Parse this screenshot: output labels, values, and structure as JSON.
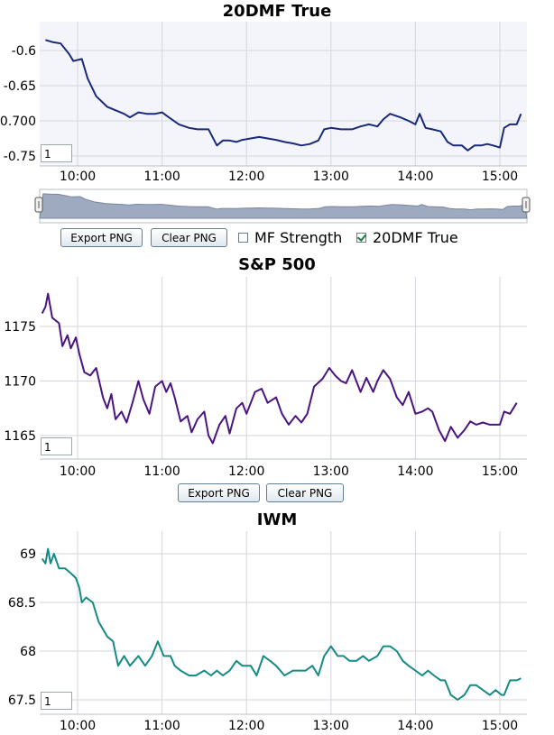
{
  "time_ticks": [
    "10:00",
    "11:00",
    "12:00",
    "13:00",
    "14:00",
    "15:00"
  ],
  "buttons": {
    "export_png": "Export PNG",
    "clear_png": "Clear PNG"
  },
  "toggles": {
    "mf_strength": "MF Strength",
    "dmf_true": "20DMF True"
  },
  "zoom_value": "1",
  "colors": {
    "dmf": "#1a2a7a",
    "spx": "#4b1580",
    "iwm": "#168a84",
    "navigator": "#9eaac0"
  },
  "chart_data": [
    {
      "type": "line",
      "title": "20DMF True",
      "series": [
        {
          "values": [
            [
              9.62,
              -0.585
            ],
            [
              9.7,
              -0.588
            ],
            [
              9.8,
              -0.59
            ],
            [
              9.9,
              -0.605
            ],
            [
              9.95,
              -0.615
            ],
            [
              10.05,
              -0.612
            ],
            [
              10.12,
              -0.64
            ],
            [
              10.22,
              -0.665
            ],
            [
              10.35,
              -0.68
            ],
            [
              10.45,
              -0.685
            ],
            [
              10.55,
              -0.69
            ],
            [
              10.62,
              -0.695
            ],
            [
              10.72,
              -0.688
            ],
            [
              10.82,
              -0.69
            ],
            [
              10.92,
              -0.69
            ],
            [
              11.0,
              -0.688
            ],
            [
              11.08,
              -0.695
            ],
            [
              11.2,
              -0.705
            ],
            [
              11.32,
              -0.71
            ],
            [
              11.42,
              -0.712
            ],
            [
              11.55,
              -0.712
            ],
            [
              11.65,
              -0.735
            ],
            [
              11.72,
              -0.728
            ],
            [
              11.8,
              -0.728
            ],
            [
              11.88,
              -0.73
            ],
            [
              11.95,
              -0.727
            ],
            [
              12.05,
              -0.725
            ],
            [
              12.15,
              -0.723
            ],
            [
              12.25,
              -0.725
            ],
            [
              12.35,
              -0.727
            ],
            [
              12.45,
              -0.73
            ],
            [
              12.55,
              -0.732
            ],
            [
              12.65,
              -0.735
            ],
            [
              12.75,
              -0.733
            ],
            [
              12.85,
              -0.728
            ],
            [
              12.92,
              -0.712
            ],
            [
              13.0,
              -0.71
            ],
            [
              13.12,
              -0.712
            ],
            [
              13.25,
              -0.712
            ],
            [
              13.35,
              -0.708
            ],
            [
              13.45,
              -0.705
            ],
            [
              13.55,
              -0.708
            ],
            [
              13.62,
              -0.698
            ],
            [
              13.7,
              -0.69
            ],
            [
              13.82,
              -0.695
            ],
            [
              13.92,
              -0.7
            ],
            [
              14.0,
              -0.705
            ],
            [
              14.05,
              -0.69
            ],
            [
              14.12,
              -0.71
            ],
            [
              14.2,
              -0.712
            ],
            [
              14.3,
              -0.715
            ],
            [
              14.38,
              -0.73
            ],
            [
              14.45,
              -0.735
            ],
            [
              14.55,
              -0.735
            ],
            [
              14.62,
              -0.742
            ],
            [
              14.7,
              -0.735
            ],
            [
              14.78,
              -0.735
            ],
            [
              14.85,
              -0.733
            ],
            [
              14.92,
              -0.735
            ],
            [
              15.0,
              -0.738
            ],
            [
              15.05,
              -0.71
            ],
            [
              15.12,
              -0.705
            ],
            [
              15.2,
              -0.705
            ],
            [
              15.25,
              -0.69
            ]
          ]
        }
      ],
      "yticks": [
        "-0.6",
        "-0.65",
        "-0.700",
        "-0.75"
      ],
      "ylim": [
        -0.763,
        -0.568
      ],
      "xlim": [
        9.58,
        15.28
      ]
    },
    {
      "type": "line",
      "title": "S&P 500",
      "series": [
        {
          "values": [
            [
              9.58,
              1176.2
            ],
            [
              9.62,
              1176.8
            ],
            [
              9.65,
              1178.0
            ],
            [
              9.7,
              1175.8
            ],
            [
              9.78,
              1175.3
            ],
            [
              9.82,
              1173.2
            ],
            [
              9.88,
              1174.2
            ],
            [
              9.92,
              1173.0
            ],
            [
              9.98,
              1174.0
            ],
            [
              10.02,
              1172.5
            ],
            [
              10.08,
              1170.8
            ],
            [
              10.15,
              1170.5
            ],
            [
              10.22,
              1171.2
            ],
            [
              10.3,
              1168.5
            ],
            [
              10.35,
              1167.5
            ],
            [
              10.4,
              1168.8
            ],
            [
              10.45,
              1166.5
            ],
            [
              10.52,
              1167.2
            ],
            [
              10.58,
              1166.2
            ],
            [
              10.65,
              1168.0
            ],
            [
              10.72,
              1170.0
            ],
            [
              10.78,
              1168.3
            ],
            [
              10.85,
              1167.0
            ],
            [
              10.92,
              1169.5
            ],
            [
              11.0,
              1170.0
            ],
            [
              11.05,
              1169.0
            ],
            [
              11.1,
              1169.8
            ],
            [
              11.15,
              1168.5
            ],
            [
              11.22,
              1166.3
            ],
            [
              11.3,
              1166.8
            ],
            [
              11.35,
              1165.3
            ],
            [
              11.42,
              1166.5
            ],
            [
              11.5,
              1167.2
            ],
            [
              11.55,
              1165.0
            ],
            [
              11.6,
              1164.3
            ],
            [
              11.68,
              1166.0
            ],
            [
              11.75,
              1166.8
            ],
            [
              11.8,
              1165.2
            ],
            [
              11.88,
              1167.5
            ],
            [
              11.95,
              1168.0
            ],
            [
              12.0,
              1167.0
            ],
            [
              12.1,
              1169.0
            ],
            [
              12.18,
              1169.3
            ],
            [
              12.25,
              1168.0
            ],
            [
              12.35,
              1168.5
            ],
            [
              12.42,
              1167.0
            ],
            [
              12.5,
              1166.0
            ],
            [
              12.58,
              1166.8
            ],
            [
              12.65,
              1166.2
            ],
            [
              12.72,
              1167.0
            ],
            [
              12.8,
              1169.5
            ],
            [
              12.9,
              1170.2
            ],
            [
              12.98,
              1171.2
            ],
            [
              13.05,
              1170.5
            ],
            [
              13.12,
              1170.0
            ],
            [
              13.18,
              1169.8
            ],
            [
              13.25,
              1171.0
            ],
            [
              13.35,
              1169.0
            ],
            [
              13.42,
              1170.3
            ],
            [
              13.5,
              1169.0
            ],
            [
              13.55,
              1170.0
            ],
            [
              13.62,
              1171.0
            ],
            [
              13.7,
              1170.2
            ],
            [
              13.78,
              1168.5
            ],
            [
              13.85,
              1167.8
            ],
            [
              13.92,
              1169.0
            ],
            [
              14.0,
              1167.0
            ],
            [
              14.08,
              1167.2
            ],
            [
              14.15,
              1167.5
            ],
            [
              14.2,
              1167.2
            ],
            [
              14.28,
              1165.5
            ],
            [
              14.35,
              1164.5
            ],
            [
              14.42,
              1165.8
            ],
            [
              14.5,
              1164.8
            ],
            [
              14.58,
              1165.5
            ],
            [
              14.65,
              1166.3
            ],
            [
              14.72,
              1166.0
            ],
            [
              14.8,
              1166.2
            ],
            [
              14.88,
              1166.0
            ],
            [
              14.95,
              1166.0
            ],
            [
              15.0,
              1166.0
            ],
            [
              15.05,
              1167.2
            ],
            [
              15.12,
              1167.0
            ],
            [
              15.2,
              1168.0
            ]
          ]
        }
      ],
      "yticks": [
        "1175",
        "1170",
        "1165"
      ],
      "ylim": [
        1163.0,
        1179.5
      ],
      "xlim": [
        9.58,
        15.28
      ]
    },
    {
      "type": "line",
      "title": "IWM",
      "series": [
        {
          "values": [
            [
              9.58,
              68.95
            ],
            [
              9.62,
              68.9
            ],
            [
              9.65,
              69.05
            ],
            [
              9.68,
              68.9
            ],
            [
              9.72,
              69.0
            ],
            [
              9.78,
              68.85
            ],
            [
              9.85,
              68.85
            ],
            [
              9.92,
              68.8
            ],
            [
              9.98,
              68.75
            ],
            [
              10.02,
              68.65
            ],
            [
              10.05,
              68.5
            ],
            [
              10.1,
              68.55
            ],
            [
              10.18,
              68.5
            ],
            [
              10.25,
              68.3
            ],
            [
              10.35,
              68.15
            ],
            [
              10.42,
              68.1
            ],
            [
              10.48,
              67.85
            ],
            [
              10.55,
              67.95
            ],
            [
              10.62,
              67.85
            ],
            [
              10.72,
              67.95
            ],
            [
              10.8,
              67.85
            ],
            [
              10.88,
              67.95
            ],
            [
              10.95,
              68.1
            ],
            [
              11.02,
              67.95
            ],
            [
              11.1,
              67.95
            ],
            [
              11.15,
              67.85
            ],
            [
              11.22,
              67.8
            ],
            [
              11.32,
              67.75
            ],
            [
              11.4,
              67.75
            ],
            [
              11.5,
              67.8
            ],
            [
              11.58,
              67.75
            ],
            [
              11.65,
              67.8
            ],
            [
              11.72,
              67.75
            ],
            [
              11.8,
              67.8
            ],
            [
              11.88,
              67.9
            ],
            [
              11.95,
              67.85
            ],
            [
              12.05,
              67.85
            ],
            [
              12.12,
              67.75
            ],
            [
              12.2,
              67.95
            ],
            [
              12.28,
              67.9
            ],
            [
              12.35,
              67.85
            ],
            [
              12.45,
              67.75
            ],
            [
              12.55,
              67.8
            ],
            [
              12.62,
              67.8
            ],
            [
              12.7,
              67.8
            ],
            [
              12.78,
              67.85
            ],
            [
              12.85,
              67.75
            ],
            [
              12.92,
              67.95
            ],
            [
              13.0,
              68.05
            ],
            [
              13.08,
              67.95
            ],
            [
              13.15,
              67.95
            ],
            [
              13.22,
              67.9
            ],
            [
              13.3,
              67.9
            ],
            [
              13.38,
              67.95
            ],
            [
              13.45,
              67.9
            ],
            [
              13.55,
              67.95
            ],
            [
              13.62,
              68.05
            ],
            [
              13.7,
              68.05
            ],
            [
              13.78,
              68.0
            ],
            [
              13.85,
              67.9
            ],
            [
              13.92,
              67.85
            ],
            [
              14.0,
              67.8
            ],
            [
              14.08,
              67.75
            ],
            [
              14.15,
              67.8
            ],
            [
              14.22,
              67.75
            ],
            [
              14.3,
              67.7
            ],
            [
              14.35,
              67.7
            ],
            [
              14.42,
              67.55
            ],
            [
              14.5,
              67.5
            ],
            [
              14.58,
              67.55
            ],
            [
              14.65,
              67.65
            ],
            [
              14.72,
              67.65
            ],
            [
              14.8,
              67.6
            ],
            [
              14.88,
              67.55
            ],
            [
              14.95,
              67.6
            ],
            [
              15.02,
              67.55
            ],
            [
              15.05,
              67.55
            ],
            [
              15.12,
              67.7
            ],
            [
              15.2,
              67.7
            ],
            [
              15.25,
              67.72
            ]
          ]
        }
      ],
      "yticks": [
        "69",
        "68.5",
        "68",
        "67.5"
      ],
      "ylim": [
        67.43,
        69.22
      ],
      "xlim": [
        9.58,
        15.28
      ]
    }
  ]
}
